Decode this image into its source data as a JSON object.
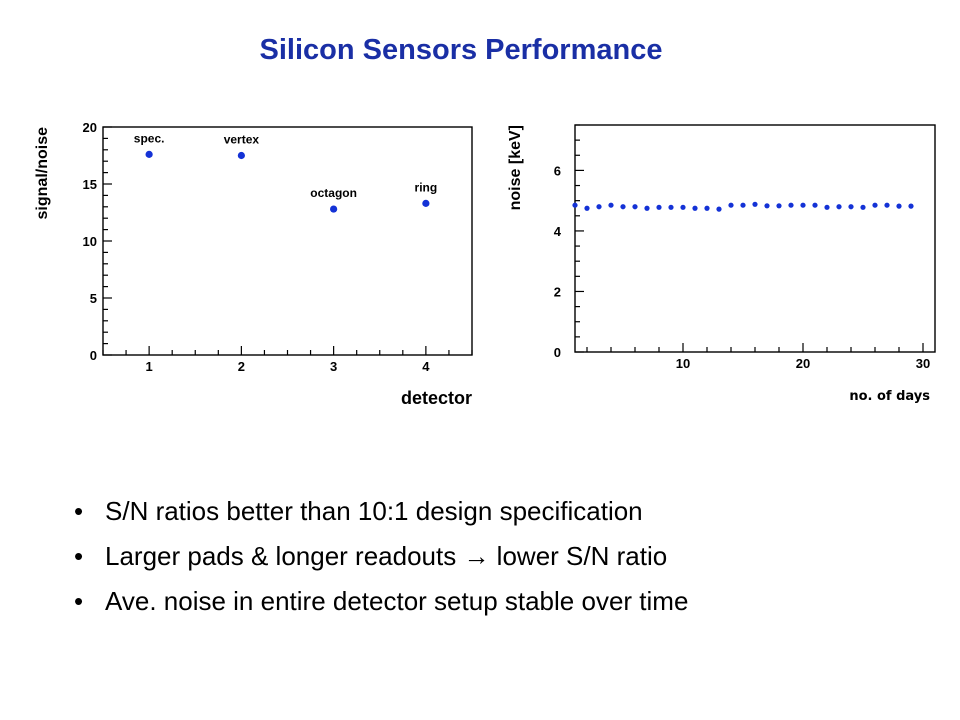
{
  "slide": {
    "title": "Silicon Sensors Performance",
    "bullets": [
      "S/N ratios better than 10:1 design specification",
      "Larger pads & longer readouts → lower S/N ratio",
      "Ave. noise in entire detector setup stable over time"
    ]
  },
  "colors": {
    "title": "#1a2fa5",
    "points": "#1432d6",
    "axes": "#000000"
  },
  "chart_data": [
    {
      "type": "scatter",
      "title": "",
      "xlabel": "detector",
      "ylabel": "signal/noise",
      "xlim": [
        0.5,
        4.5
      ],
      "ylim": [
        0,
        20
      ],
      "xticks": [
        1,
        2,
        3,
        4
      ],
      "yticks": [
        0,
        5,
        10,
        15,
        20
      ],
      "grid": false,
      "points": [
        {
          "x": 1,
          "y": 17.6,
          "label": "spec."
        },
        {
          "x": 2,
          "y": 17.5,
          "label": "vertex"
        },
        {
          "x": 3,
          "y": 12.8,
          "label": "octagon"
        },
        {
          "x": 4,
          "y": 13.3,
          "label": "ring"
        }
      ]
    },
    {
      "type": "scatter",
      "title": "",
      "xlabel": "no. of days",
      "ylabel": "noise [keV]",
      "xlim": [
        1,
        31
      ],
      "ylim": [
        0,
        7.5
      ],
      "xticks": [
        10,
        20,
        30
      ],
      "yticks": [
        0,
        2,
        4,
        6
      ],
      "grid": false,
      "x": [
        1,
        2,
        3,
        4,
        5,
        6,
        7,
        8,
        9,
        10,
        11,
        12,
        13,
        14,
        15,
        16,
        17,
        18,
        19,
        20,
        21,
        22,
        23,
        24,
        25,
        26,
        27,
        28,
        29
      ],
      "y": [
        4.85,
        4.75,
        4.8,
        4.85,
        4.8,
        4.8,
        4.75,
        4.78,
        4.78,
        4.78,
        4.75,
        4.75,
        4.72,
        4.85,
        4.85,
        4.88,
        4.83,
        4.83,
        4.85,
        4.85,
        4.85,
        4.78,
        4.8,
        4.8,
        4.78,
        4.85,
        4.85,
        4.82,
        4.82
      ]
    }
  ]
}
